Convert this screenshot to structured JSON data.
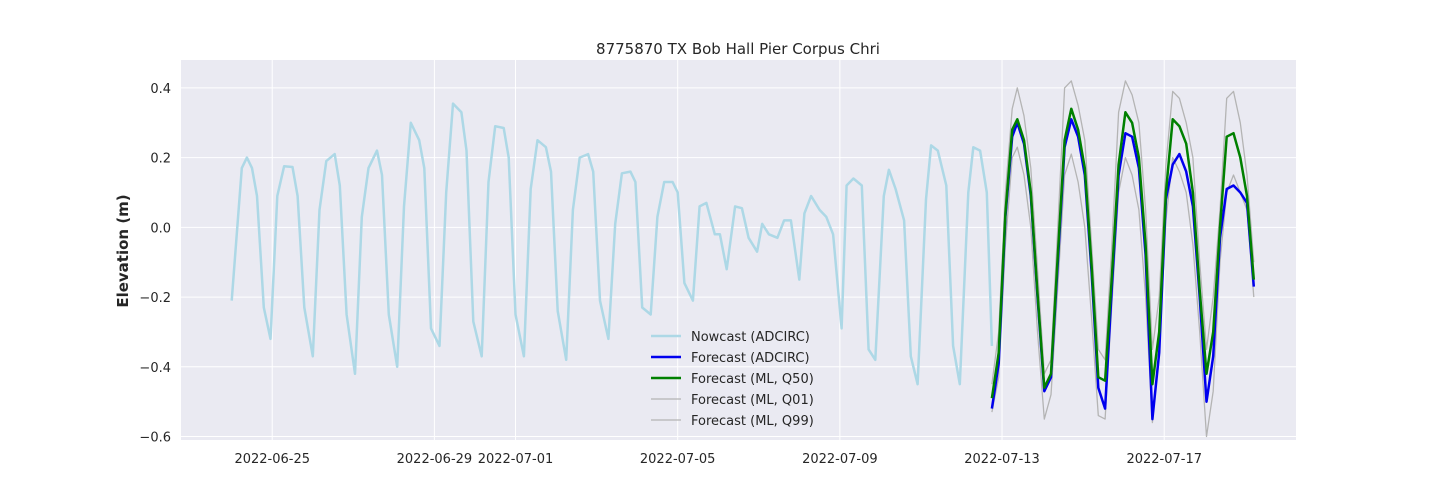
{
  "chart_data": {
    "type": "line",
    "title": "8775870 TX Bob Hall Pier Corpus Chri",
    "xlabel": "",
    "ylabel": "Elevation (m)",
    "xlim": [
      "2022-06-22T18:00",
      "2022-07-20T06:00"
    ],
    "ylim": [
      -0.61,
      0.48
    ],
    "x_ticks": [
      "2022-06-25",
      "2022-06-29",
      "2022-07-01",
      "2022-07-05",
      "2022-07-09",
      "2022-07-13",
      "2022-07-17"
    ],
    "y_ticks": [
      0.4,
      0.2,
      0.0,
      -0.2,
      -0.4,
      -0.6
    ],
    "y_tick_labels": [
      "0.4",
      "0.2",
      "0.0",
      "−0.2",
      "−0.4",
      "−0.6"
    ],
    "grid": true,
    "legend_position": "lower-center",
    "series": [
      {
        "name": "Nowcast (ADCIRC)",
        "color": "#add8e6",
        "x": [
          "2022-06-24T00:00",
          "2022-06-24T06:00",
          "2022-06-24T09:00",
          "2022-06-24T12:00",
          "2022-06-24T15:00",
          "2022-06-24T19:00",
          "2022-06-24T23:00",
          "2022-06-25T03:00",
          "2022-06-25T07:00",
          "2022-06-25T12:00",
          "2022-06-25T15:00",
          "2022-06-25T19:00",
          "2022-06-26T00:00",
          "2022-06-26T04:00",
          "2022-06-26T08:00",
          "2022-06-26T13:00",
          "2022-06-26T16:00",
          "2022-06-26T20:00",
          "2022-06-27T01:00",
          "2022-06-27T05:00",
          "2022-06-27T09:00",
          "2022-06-27T14:00",
          "2022-06-27T17:00",
          "2022-06-27T21:00",
          "2022-06-28T02:00",
          "2022-06-28T06:00",
          "2022-06-28T10:00",
          "2022-06-28T15:00",
          "2022-06-28T18:00",
          "2022-06-28T22:00",
          "2022-06-29T03:00",
          "2022-06-29T07:00",
          "2022-06-29T11:00",
          "2022-06-29T16:00",
          "2022-06-29T19:00",
          "2022-06-29T23:00",
          "2022-06-30T04:00",
          "2022-06-30T08:00",
          "2022-06-30T12:00",
          "2022-06-30T17:00",
          "2022-06-30T20:00",
          "2022-07-01T00:00",
          "2022-07-01T05:00",
          "2022-07-01T09:00",
          "2022-07-01T13:00",
          "2022-07-01T18:00",
          "2022-07-01T21:00",
          "2022-07-02T01:00",
          "2022-07-02T06:00",
          "2022-07-02T10:00",
          "2022-07-02T14:00",
          "2022-07-02T19:00",
          "2022-07-02T22:00",
          "2022-07-03T02:00",
          "2022-07-03T07:00",
          "2022-07-03T11:00",
          "2022-07-03T15:00",
          "2022-07-03T20:00",
          "2022-07-03T23:00",
          "2022-07-04T03:00",
          "2022-07-04T08:00",
          "2022-07-04T12:00",
          "2022-07-04T16:00",
          "2022-07-04T21:00",
          "2022-07-05T00:00",
          "2022-07-05T04:00",
          "2022-07-05T09:00",
          "2022-07-05T13:00",
          "2022-07-05T17:00",
          "2022-07-05T22:00",
          "2022-07-06T01:00",
          "2022-07-06T05:00",
          "2022-07-06T10:00",
          "2022-07-06T14:00",
          "2022-07-06T18:00",
          "2022-07-06T23:00",
          "2022-07-07T02:00",
          "2022-07-07T06:00",
          "2022-07-07T11:00",
          "2022-07-07T15:00",
          "2022-07-07T19:00",
          "2022-07-08T00:00",
          "2022-07-08T03:00",
          "2022-07-08T07:00",
          "2022-07-08T12:00",
          "2022-07-08T16:00",
          "2022-07-08T20:00",
          "2022-07-09T01:00",
          "2022-07-09T04:00",
          "2022-07-09T08:00",
          "2022-07-09T13:00",
          "2022-07-09T17:00",
          "2022-07-09T21:00",
          "2022-07-10T02:00",
          "2022-07-10T05:00",
          "2022-07-10T09:00",
          "2022-07-10T14:00",
          "2022-07-10T18:00",
          "2022-07-10T22:00",
          "2022-07-11T03:00",
          "2022-07-11T06:00",
          "2022-07-11T10:00",
          "2022-07-11T15:00",
          "2022-07-11T19:00",
          "2022-07-11T23:00",
          "2022-07-12T04:00",
          "2022-07-12T07:00",
          "2022-07-12T11:00",
          "2022-07-12T15:00",
          "2022-07-12T18:00"
        ],
        "values": [
          -0.21,
          0.17,
          0.2,
          0.17,
          0.09,
          -0.23,
          -0.32,
          0.09,
          0.175,
          0.173,
          0.09,
          -0.23,
          -0.37,
          0.05,
          0.19,
          0.21,
          0.12,
          -0.25,
          -0.42,
          0.03,
          0.17,
          0.22,
          0.15,
          -0.25,
          -0.4,
          0.06,
          0.3,
          0.25,
          0.17,
          -0.29,
          -0.34,
          0.1,
          0.355,
          0.33,
          0.22,
          -0.27,
          -0.37,
          0.13,
          0.29,
          0.285,
          0.2,
          -0.25,
          -0.37,
          0.11,
          0.25,
          0.23,
          0.16,
          -0.24,
          -0.38,
          0.05,
          0.2,
          0.21,
          0.16,
          -0.21,
          -0.32,
          0.01,
          0.155,
          0.16,
          0.13,
          -0.23,
          -0.25,
          0.03,
          0.13,
          0.13,
          0.1,
          -0.16,
          -0.21,
          0.06,
          0.07,
          -0.02,
          -0.02,
          -0.12,
          0.06,
          0.055,
          -0.03,
          -0.07,
          0.01,
          -0.02,
          -0.03,
          0.02,
          0.02,
          -0.15,
          0.04,
          0.09,
          0.05,
          0.03,
          -0.02,
          -0.29,
          0.12,
          0.14,
          0.12,
          -0.35,
          -0.38,
          0.09,
          0.165,
          0.11,
          0.02,
          -0.37,
          -0.45,
          0.08,
          0.235,
          0.22,
          0.12,
          -0.34,
          -0.45,
          0.1,
          0.23,
          0.22,
          0.1,
          -0.34
        ]
      },
      {
        "name": "Forecast (ADCIRC)",
        "color": "#0000ee",
        "x": [
          "2022-07-12T18:00",
          "2022-07-12T22:00",
          "2022-07-13T02:00",
          "2022-07-13T06:00",
          "2022-07-13T09:00",
          "2022-07-13T13:00",
          "2022-07-13T17:00",
          "2022-07-13T21:00",
          "2022-07-14T01:00",
          "2022-07-14T05:00",
          "2022-07-14T09:00",
          "2022-07-14T13:00",
          "2022-07-14T17:00",
          "2022-07-14T21:00",
          "2022-07-15T01:00",
          "2022-07-15T05:00",
          "2022-07-15T09:00",
          "2022-07-15T13:00",
          "2022-07-15T17:00",
          "2022-07-15T21:00",
          "2022-07-16T01:00",
          "2022-07-16T05:00",
          "2022-07-16T09:00",
          "2022-07-16T13:00",
          "2022-07-16T17:00",
          "2022-07-16T21:00",
          "2022-07-17T01:00",
          "2022-07-17T05:00",
          "2022-07-17T09:00",
          "2022-07-17T13:00",
          "2022-07-17T17:00",
          "2022-07-17T21:00",
          "2022-07-18T01:00",
          "2022-07-18T05:00",
          "2022-07-18T09:00",
          "2022-07-18T13:00",
          "2022-07-18T17:00",
          "2022-07-18T21:00",
          "2022-07-19T01:00",
          "2022-07-19T05:00"
        ],
        "values": [
          -0.52,
          -0.39,
          0.03,
          0.26,
          0.3,
          0.24,
          0.09,
          -0.2,
          -0.47,
          -0.43,
          -0.1,
          0.23,
          0.31,
          0.26,
          0.15,
          -0.13,
          -0.46,
          -0.52,
          -0.17,
          0.15,
          0.27,
          0.26,
          0.17,
          -0.08,
          -0.55,
          -0.36,
          0.08,
          0.18,
          0.21,
          0.16,
          0.06,
          -0.2,
          -0.5,
          -0.37,
          -0.03,
          0.11,
          0.12,
          0.1,
          0.07,
          -0.17
        ]
      },
      {
        "name": "Forecast (ML, Q50)",
        "color": "#008000",
        "x": [
          "2022-07-12T18:00",
          "2022-07-12T22:00",
          "2022-07-13T02:00",
          "2022-07-13T06:00",
          "2022-07-13T09:00",
          "2022-07-13T13:00",
          "2022-07-13T17:00",
          "2022-07-13T21:00",
          "2022-07-14T01:00",
          "2022-07-14T05:00",
          "2022-07-14T09:00",
          "2022-07-14T13:00",
          "2022-07-14T17:00",
          "2022-07-14T21:00",
          "2022-07-15T01:00",
          "2022-07-15T05:00",
          "2022-07-15T09:00",
          "2022-07-15T13:00",
          "2022-07-15T17:00",
          "2022-07-15T21:00",
          "2022-07-16T01:00",
          "2022-07-16T05:00",
          "2022-07-16T09:00",
          "2022-07-16T13:00",
          "2022-07-16T17:00",
          "2022-07-16T21:00",
          "2022-07-17T01:00",
          "2022-07-17T05:00",
          "2022-07-17T09:00",
          "2022-07-17T13:00",
          "2022-07-17T17:00",
          "2022-07-17T21:00",
          "2022-07-18T01:00",
          "2022-07-18T05:00",
          "2022-07-18T09:00",
          "2022-07-18T13:00",
          "2022-07-18T17:00",
          "2022-07-18T21:00",
          "2022-07-19T01:00",
          "2022-07-19T05:00"
        ],
        "values": [
          -0.49,
          -0.36,
          0.04,
          0.28,
          0.31,
          0.25,
          0.1,
          -0.19,
          -0.46,
          -0.42,
          -0.08,
          0.25,
          0.34,
          0.28,
          0.17,
          -0.11,
          -0.43,
          -0.44,
          -0.14,
          0.18,
          0.33,
          0.3,
          0.2,
          -0.05,
          -0.45,
          -0.3,
          0.1,
          0.31,
          0.29,
          0.24,
          0.1,
          -0.18,
          -0.42,
          -0.3,
          0.0,
          0.26,
          0.27,
          0.2,
          0.09,
          -0.15
        ]
      },
      {
        "name": "Forecast (ML, Q01)",
        "color": "#b4b4b4",
        "x": [
          "2022-07-12T18:00",
          "2022-07-12T22:00",
          "2022-07-13T02:00",
          "2022-07-13T06:00",
          "2022-07-13T09:00",
          "2022-07-13T13:00",
          "2022-07-13T17:00",
          "2022-07-13T21:00",
          "2022-07-14T01:00",
          "2022-07-14T05:00",
          "2022-07-14T09:00",
          "2022-07-14T13:00",
          "2022-07-14T17:00",
          "2022-07-14T21:00",
          "2022-07-15T01:00",
          "2022-07-15T05:00",
          "2022-07-15T09:00",
          "2022-07-15T13:00",
          "2022-07-15T17:00",
          "2022-07-15T21:00",
          "2022-07-16T01:00",
          "2022-07-16T05:00",
          "2022-07-16T09:00",
          "2022-07-16T13:00",
          "2022-07-16T17:00",
          "2022-07-16T21:00",
          "2022-07-17T01:00",
          "2022-07-17T05:00",
          "2022-07-17T09:00",
          "2022-07-17T13:00",
          "2022-07-17T17:00",
          "2022-07-17T21:00",
          "2022-07-18T01:00",
          "2022-07-18T05:00",
          "2022-07-18T09:00",
          "2022-07-18T13:00",
          "2022-07-18T17:00",
          "2022-07-18T21:00",
          "2022-07-19T01:00",
          "2022-07-19T05:00"
        ],
        "values": [
          -0.53,
          -0.43,
          -0.05,
          0.2,
          0.23,
          0.15,
          0.0,
          -0.3,
          -0.55,
          -0.48,
          -0.17,
          0.15,
          0.21,
          0.13,
          0.0,
          -0.26,
          -0.54,
          -0.55,
          -0.22,
          0.1,
          0.2,
          0.15,
          0.05,
          -0.2,
          -0.56,
          -0.36,
          0.02,
          0.2,
          0.16,
          0.1,
          -0.05,
          -0.3,
          -0.6,
          -0.47,
          -0.1,
          0.1,
          0.15,
          0.1,
          0.05,
          -0.2
        ]
      },
      {
        "name": "Forecast (ML, Q99)",
        "color": "#b4b4b4",
        "x": [
          "2022-07-12T18:00",
          "2022-07-12T22:00",
          "2022-07-13T02:00",
          "2022-07-13T06:00",
          "2022-07-13T09:00",
          "2022-07-13T13:00",
          "2022-07-13T17:00",
          "2022-07-13T21:00",
          "2022-07-14T01:00",
          "2022-07-14T05:00",
          "2022-07-14T09:00",
          "2022-07-14T13:00",
          "2022-07-14T17:00",
          "2022-07-14T21:00",
          "2022-07-15T01:00",
          "2022-07-15T05:00",
          "2022-07-15T09:00",
          "2022-07-15T13:00",
          "2022-07-15T17:00",
          "2022-07-15T21:00",
          "2022-07-16T01:00",
          "2022-07-16T05:00",
          "2022-07-16T09:00",
          "2022-07-16T13:00",
          "2022-07-16T17:00",
          "2022-07-16T21:00",
          "2022-07-17T01:00",
          "2022-07-17T05:00",
          "2022-07-17T09:00",
          "2022-07-17T13:00",
          "2022-07-17T17:00",
          "2022-07-17T21:00",
          "2022-07-18T01:00",
          "2022-07-18T05:00",
          "2022-07-18T09:00",
          "2022-07-18T13:00",
          "2022-07-18T17:00",
          "2022-07-18T21:00",
          "2022-07-19T01:00",
          "2022-07-19T05:00"
        ],
        "values": [
          -0.45,
          -0.3,
          0.1,
          0.34,
          0.4,
          0.32,
          0.17,
          -0.12,
          -0.42,
          -0.38,
          0.0,
          0.4,
          0.42,
          0.35,
          0.25,
          -0.05,
          -0.35,
          -0.38,
          -0.05,
          0.33,
          0.42,
          0.38,
          0.3,
          0.05,
          -0.35,
          -0.2,
          0.18,
          0.39,
          0.37,
          0.3,
          0.2,
          -0.1,
          -0.35,
          -0.2,
          0.05,
          0.37,
          0.39,
          0.3,
          0.15,
          -0.1
        ]
      }
    ]
  }
}
